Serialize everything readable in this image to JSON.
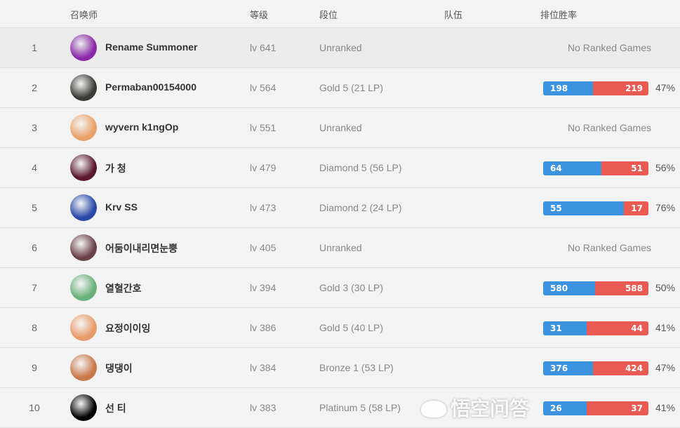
{
  "header": {
    "summoner": "召唤师",
    "level": "等级",
    "tier": "段位",
    "team": "队伍",
    "winrate": "排位胜率"
  },
  "no_ranked_label": "No Ranked Games",
  "colors": {
    "wins": "#3b93df",
    "losses": "#e95a52"
  },
  "rows": [
    {
      "rank": "1",
      "name": "Rename Summoner",
      "level": "lv 641",
      "tier": "Unranked",
      "ranked": false,
      "avatar": "#8a2aa8"
    },
    {
      "rank": "2",
      "name": "Permaban00154000",
      "level": "lv 564",
      "tier": "Gold 5 (21 LP)",
      "ranked": true,
      "wins": "198",
      "losses": "219",
      "pct": "47%",
      "avatar": "#3b3a36"
    },
    {
      "rank": "3",
      "name": "wyvern k1ngOp",
      "level": "lv 551",
      "tier": "Unranked",
      "ranked": false,
      "avatar": "#e8a26a"
    },
    {
      "rank": "4",
      "name": "가 청",
      "level": "lv 479",
      "tier": "Diamond 5 (56 LP)",
      "ranked": true,
      "wins": "64",
      "losses": "51",
      "pct": "56%",
      "avatar": "#5a1830"
    },
    {
      "rank": "5",
      "name": "Krv SS",
      "level": "lv 473",
      "tier": "Diamond 2 (24 LP)",
      "ranked": true,
      "wins": "55",
      "losses": "17",
      "pct": "76%",
      "avatar": "#2848a8"
    },
    {
      "rank": "6",
      "name": "어둠이내리면눈뿡",
      "level": "lv 405",
      "tier": "Unranked",
      "ranked": false,
      "avatar": "#6a4048"
    },
    {
      "rank": "7",
      "name": "열혈간호",
      "level": "lv 394",
      "tier": "Gold 3 (30 LP)",
      "ranked": true,
      "wins": "580",
      "losses": "588",
      "pct": "50%",
      "avatar": "#6ab07a"
    },
    {
      "rank": "8",
      "name": "요정이이잉",
      "level": "lv 386",
      "tier": "Gold 5 (40 LP)",
      "ranked": true,
      "wins": "31",
      "losses": "44",
      "pct": "41%",
      "avatar": "#e89a6a"
    },
    {
      "rank": "9",
      "name": "댕댕이",
      "level": "lv 384",
      "tier": "Bronze 1 (53 LP)",
      "ranked": true,
      "wins": "376",
      "losses": "424",
      "pct": "47%",
      "avatar": "#c8784a"
    },
    {
      "rank": "10",
      "name": "선 티",
      "level": "lv 383",
      "tier": "Platinum 5 (58 LP)",
      "ranked": true,
      "wins": "26",
      "losses": "37",
      "pct": "41%",
      "avatar": "#000000"
    }
  ],
  "watermark": "悟空问答"
}
